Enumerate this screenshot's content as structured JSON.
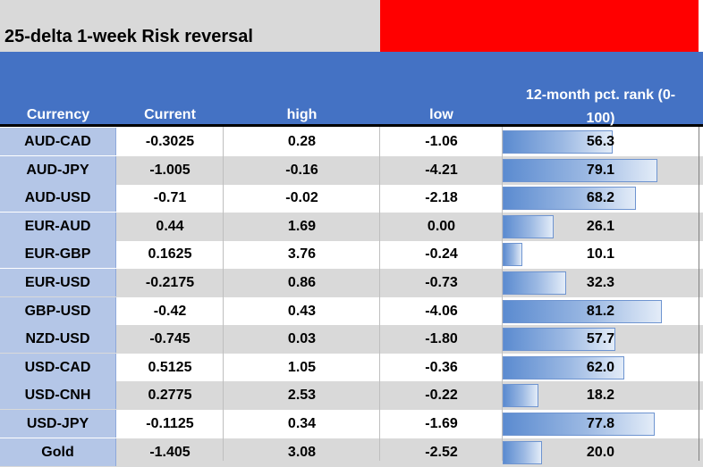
{
  "title": "25-delta 1-week Risk reversal",
  "headers": {
    "currency": "Currency",
    "current": "Current",
    "high": "high",
    "low": "low",
    "rank_line1": "12-month pct. rank (0-",
    "rank_line2": "100)"
  },
  "colors": {
    "title_band": "#d9d9d9",
    "accent_red": "#ff0000",
    "header_blue": "#4472c4",
    "currency_col": "#b4c6e7",
    "stripe_gray": "#d9d9d9",
    "databar_blue": "#5b8bd0"
  },
  "rows": [
    {
      "currency": "AUD-CAD",
      "current": "-0.3025",
      "high": "0.28",
      "low": "-1.06",
      "rank": "56.3"
    },
    {
      "currency": "AUD-JPY",
      "current": "-1.005",
      "high": "-0.16",
      "low": "-4.21",
      "rank": "79.1"
    },
    {
      "currency": "AUD-USD",
      "current": "-0.71",
      "high": "-0.02",
      "low": "-2.18",
      "rank": "68.2"
    },
    {
      "currency": "EUR-AUD",
      "current": "0.44",
      "high": "1.69",
      "low": "0.00",
      "rank": "26.1"
    },
    {
      "currency": "EUR-GBP",
      "current": "0.1625",
      "high": "3.76",
      "low": "-0.24",
      "rank": "10.1"
    },
    {
      "currency": "EUR-USD",
      "current": "-0.2175",
      "high": "0.86",
      "low": "-0.73",
      "rank": "32.3"
    },
    {
      "currency": "GBP-USD",
      "current": "-0.42",
      "high": "0.43",
      "low": "-4.06",
      "rank": "81.2"
    },
    {
      "currency": "NZD-USD",
      "current": "-0.745",
      "high": "0.03",
      "low": "-1.80",
      "rank": "57.7"
    },
    {
      "currency": "USD-CAD",
      "current": "0.5125",
      "high": "1.05",
      "low": "-0.36",
      "rank": "62.0"
    },
    {
      "currency": "USD-CNH",
      "current": "0.2775",
      "high": "2.53",
      "low": "-0.22",
      "rank": "18.2"
    },
    {
      "currency": "USD-JPY",
      "current": "-0.1125",
      "high": "0.34",
      "low": "-1.69",
      "rank": "77.8"
    },
    {
      "currency": "Gold",
      "current": "-1.405",
      "high": "3.08",
      "low": "-2.52",
      "rank": "20.0"
    }
  ]
}
